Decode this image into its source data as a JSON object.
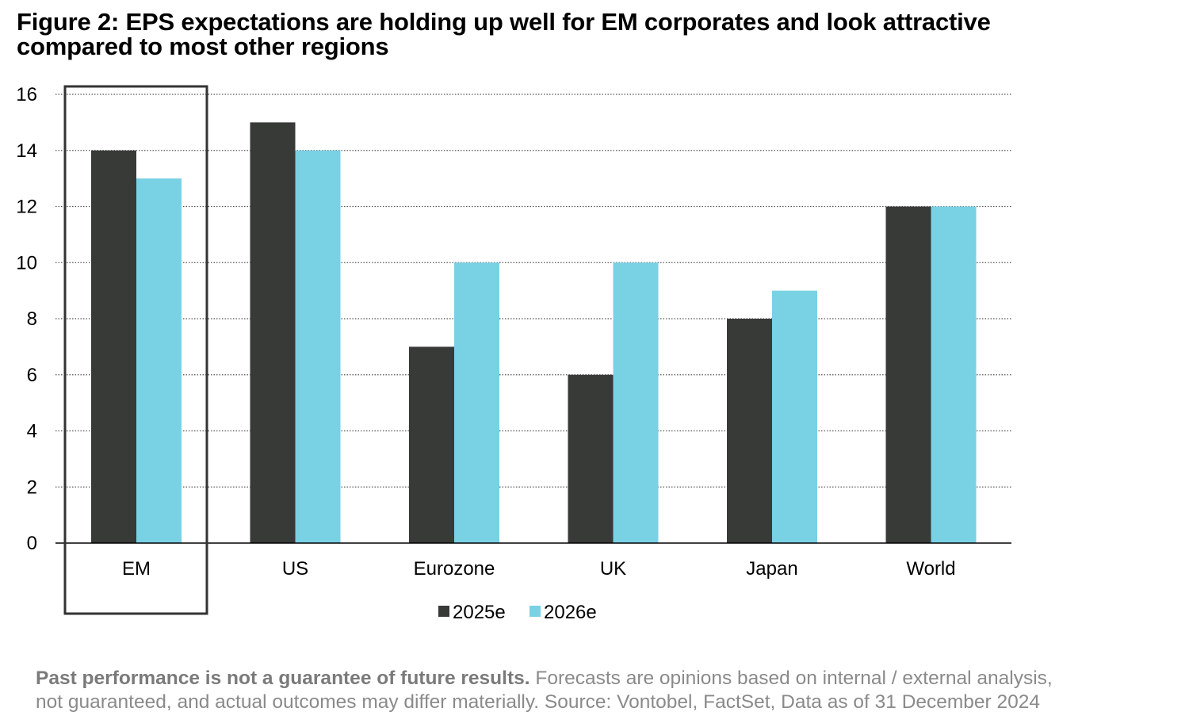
{
  "title": {
    "line1": "Figure 2: EPS expectations are holding up well for EM corporates and look attractive",
    "line2": "compared to most other regions"
  },
  "chart_data": {
    "type": "bar",
    "categories": [
      "EM",
      "US",
      "Eurozone",
      "UK",
      "Japan",
      "World"
    ],
    "series": [
      {
        "name": "2025e",
        "values": [
          14,
          15,
          7,
          6,
          8,
          12
        ],
        "color": "#383a38"
      },
      {
        "name": "2026e",
        "values": [
          13,
          14,
          10,
          10,
          9,
          12
        ],
        "color": "#79d1e4"
      }
    ],
    "yticks": [
      "0",
      "2",
      "4",
      "6",
      "8",
      "10",
      "12",
      "14",
      "16"
    ],
    "ylim": [
      0,
      16
    ],
    "grid": "horizontal-dotted",
    "legend_position": "bottom-center",
    "highlighted_category": "EM"
  },
  "footnote": {
    "bold": "Past performance is not a guarantee of future results.",
    "line1_rest": " Forecasts are opinions based on internal / external analysis,",
    "line2": "not guaranteed, and actual outcomes may differ materially. Source: Vontobel, FactSet, Data as of 31 December 2024"
  }
}
